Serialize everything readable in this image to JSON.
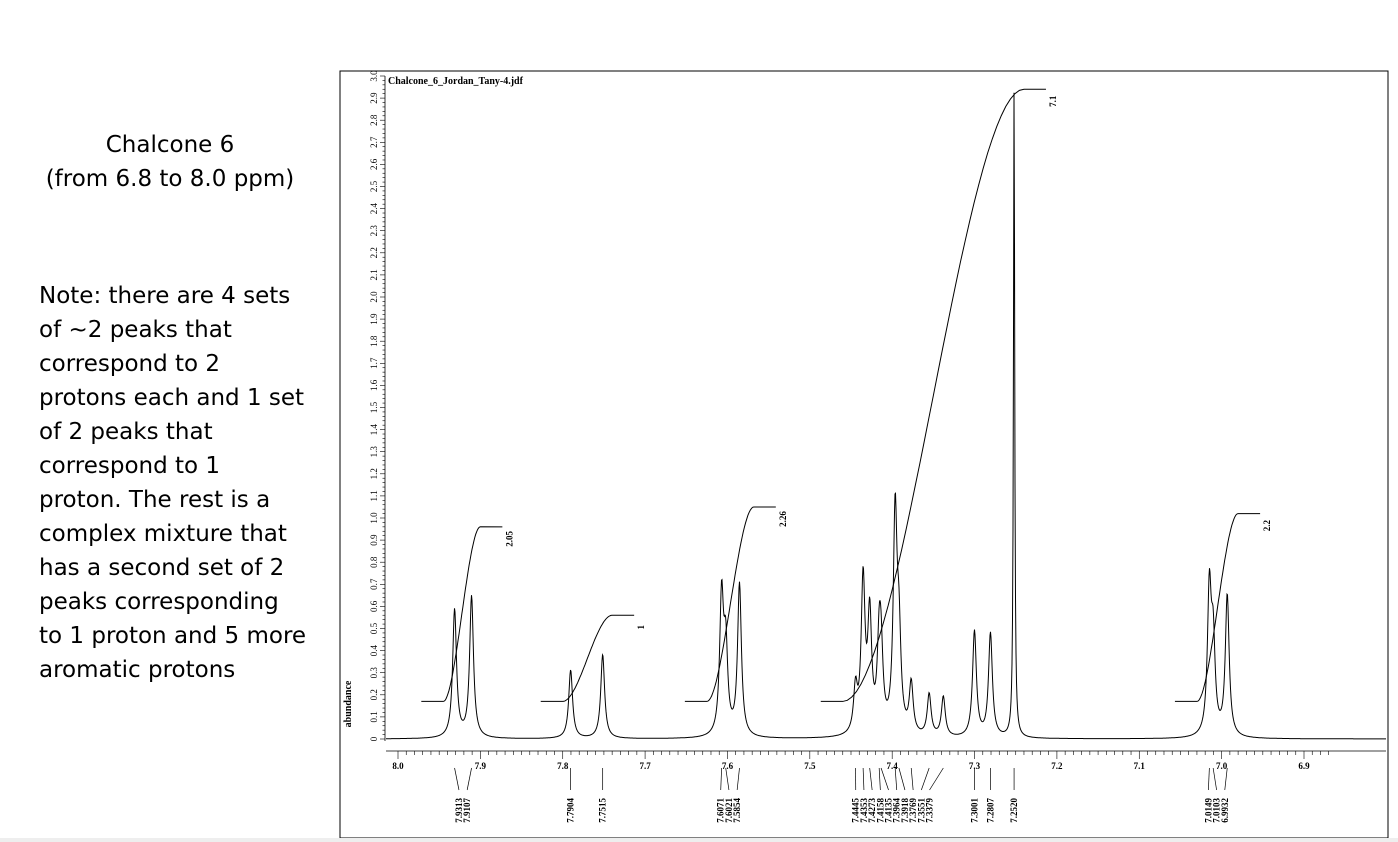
{
  "caption": {
    "line1": "Chalcone 6",
    "line2": "(from 6.8 to 8.0 ppm)"
  },
  "note": "Note: there are 4 sets of ~2 peaks that correspond to 2 protons each and 1 set of 2 peaks that correspond to 1 proton. The rest is a complex mixture that has a second set of 2 peaks corresponding to 1 proton and 5 more aromatic protons",
  "chart_data": {
    "type": "line",
    "title": "Chalcone_6_Jordan_Tany-4.jdf",
    "ylabel": "abundance",
    "xlabel": "",
    "xlim": [
      8.0,
      6.87
    ],
    "x_reversed": true,
    "ylim": [
      0,
      3.0
    ],
    "x_ticks": [
      "8.0",
      "7.9",
      "7.8",
      "7.7",
      "7.6",
      "7.5",
      "7.4",
      "7.3",
      "7.2",
      "7.1",
      "7.0",
      "6.9"
    ],
    "y_ticks": [
      "0",
      "0.1",
      "0.2",
      "0.3",
      "0.4",
      "0.5",
      "0.6",
      "0.7",
      "0.8",
      "0.9",
      "1.0",
      "1.1",
      "1.2",
      "1.3",
      "1.4",
      "1.5",
      "1.6",
      "1.7",
      "1.8",
      "1.9",
      "2.0",
      "2.1",
      "2.2",
      "2.3",
      "2.4",
      "2.5",
      "2.6",
      "2.7",
      "2.8",
      "2.9",
      "3.0"
    ],
    "peaks": [
      {
        "ppm": 7.9313,
        "height": 0.58
      },
      {
        "ppm": 7.9107,
        "height": 0.64
      },
      {
        "ppm": 7.7904,
        "height": 0.31
      },
      {
        "ppm": 7.7515,
        "height": 0.38
      },
      {
        "ppm": 7.6071,
        "height": 0.62
      },
      {
        "ppm": 7.6021,
        "height": 0.38
      },
      {
        "ppm": 7.5854,
        "height": 0.69
      },
      {
        "ppm": 7.4445,
        "height": 0.2
      },
      {
        "ppm": 7.4353,
        "height": 0.69
      },
      {
        "ppm": 7.4273,
        "height": 0.52
      },
      {
        "ppm": 7.4158,
        "height": 0.35
      },
      {
        "ppm": 7.4135,
        "height": 0.3
      },
      {
        "ppm": 7.3964,
        "height": 0.98
      },
      {
        "ppm": 7.3918,
        "height": 0.4
      },
      {
        "ppm": 7.3769,
        "height": 0.23
      },
      {
        "ppm": 7.3551,
        "height": 0.19
      },
      {
        "ppm": 7.3379,
        "height": 0.18
      },
      {
        "ppm": 7.3001,
        "height": 0.48
      },
      {
        "ppm": 7.2807,
        "height": 0.47
      },
      {
        "ppm": 7.252,
        "height": 2.95
      },
      {
        "ppm": 7.0149,
        "height": 0.65
      },
      {
        "ppm": 7.0103,
        "height": 0.4
      },
      {
        "ppm": 6.9932,
        "height": 0.64
      }
    ],
    "integrals": [
      {
        "from": 7.945,
        "to": 7.9,
        "value": "2.05",
        "y_start": 0.17,
        "y_end": 0.96
      },
      {
        "from": 7.8,
        "to": 7.74,
        "value": "1",
        "y_start": 0.17,
        "y_end": 0.56
      },
      {
        "from": 7.625,
        "to": 7.568,
        "value": "2.26",
        "y_start": 0.17,
        "y_end": 1.05
      },
      {
        "from": 7.46,
        "to": 7.24,
        "value": "7.1",
        "y_start": 0.17,
        "y_end": 2.94
      },
      {
        "from": 7.03,
        "to": 6.98,
        "value": "2.2",
        "y_start": 0.17,
        "y_end": 1.02
      }
    ],
    "peak_label_groups": [
      [
        "7.9313",
        "7.9107"
      ],
      [
        "7.7904"
      ],
      [
        "7.7515"
      ],
      [
        "7.6071",
        "7.6021",
        "7.5854"
      ],
      [
        "7.4445",
        "7.4353",
        "7.4273",
        "7.4158",
        "7.4135",
        "7.3964",
        "7.3918",
        "7.3769",
        "7.3551",
        "7.3379"
      ],
      [
        "7.3001"
      ],
      [
        "7.2807"
      ],
      [
        "7.2520"
      ],
      [
        "7.0149",
        "7.0103",
        "6.9932"
      ]
    ]
  }
}
